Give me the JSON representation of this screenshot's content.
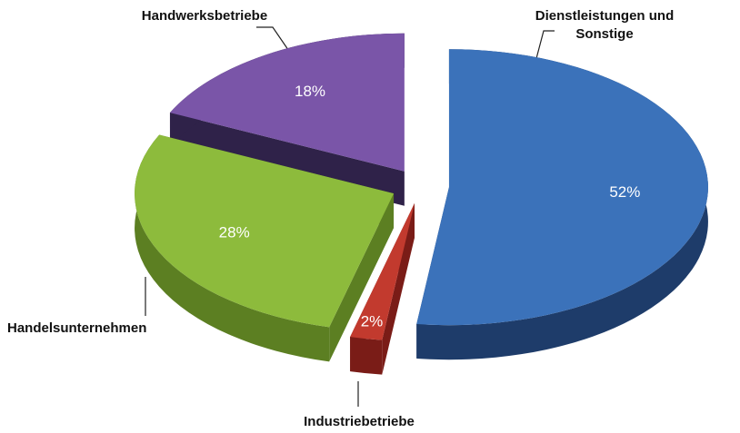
{
  "chart_data": {
    "type": "pie3d",
    "categories": [
      "Dienstleistungen und Sonstige",
      "Industriebetriebe",
      "Handelsunternehmen",
      "Handwerksbetriebe"
    ],
    "values": [
      52,
      2,
      28,
      18
    ],
    "value_labels": [
      "52%",
      "2%",
      "28%",
      "18%"
    ],
    "colors": [
      "#3b72ba",
      "#c23a2e",
      "#8dbb3c",
      "#7a55a8"
    ],
    "side_colors": [
      "#1e3c6a",
      "#7a1c17",
      "#5c7f22",
      "#2f2249"
    ]
  }
}
